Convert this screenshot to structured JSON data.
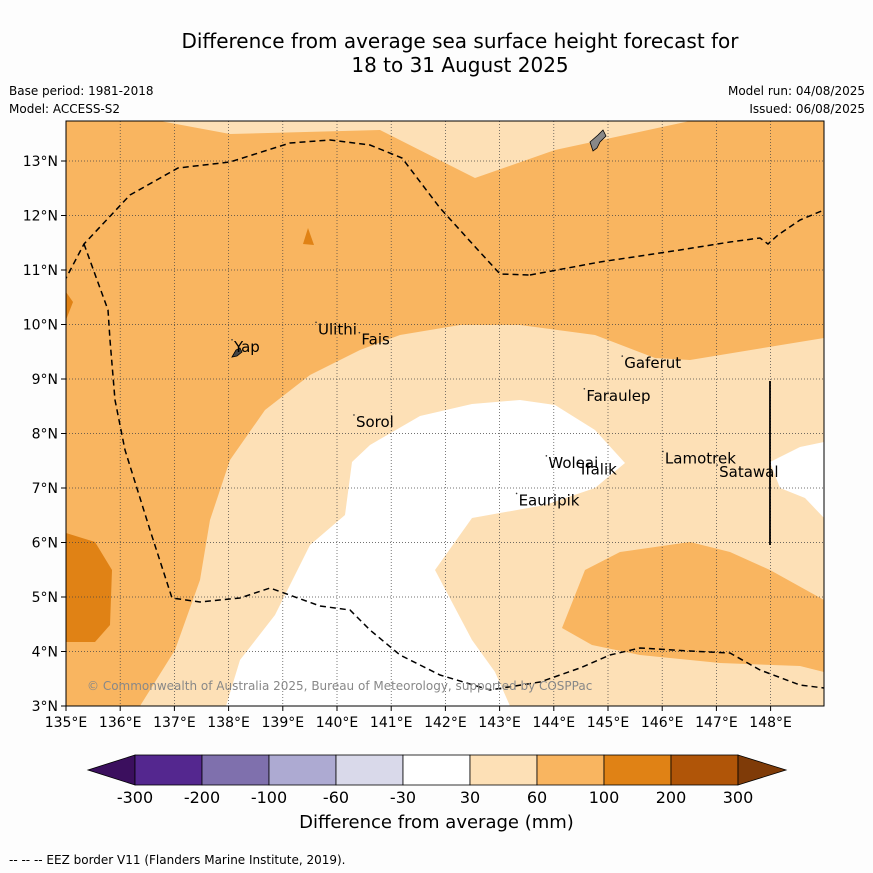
{
  "title_line1": "Difference from average sea surface height forecast for",
  "title_line2": "18 to 31 August 2025",
  "base_period": "Base period: 1981-2018",
  "model": "Model: ACCESS-S2",
  "model_run": "Model run: 04/08/2025",
  "issued": "Issued: 06/08/2025",
  "copyright": "© Commonwealth of Australia 2025, Bureau of Meteorology, supported by COSPPac",
  "x_ticks": [
    "135°E",
    "136°E",
    "137°E",
    "138°E",
    "139°E",
    "140°E",
    "141°E",
    "142°E",
    "143°E",
    "144°E",
    "145°E",
    "146°E",
    "147°E",
    "148°E"
  ],
  "y_ticks": [
    "3°N",
    "4°N",
    "5°N",
    "6°N",
    "7°N",
    "8°N",
    "9°N",
    "10°N",
    "11°N",
    "12°N",
    "13°N"
  ],
  "places": [
    {
      "name": "Ulithi",
      "lon": 139.65,
      "lat": 9.82
    },
    {
      "name": "Fais",
      "lon": 140.45,
      "lat": 9.63
    },
    {
      "name": "Yap",
      "lon": 138.1,
      "lat": 9.5
    },
    {
      "name": "Gaferut",
      "lon": 145.3,
      "lat": 9.2
    },
    {
      "name": "Faraulep",
      "lon": 144.6,
      "lat": 8.6
    },
    {
      "name": "Sorol",
      "lon": 140.35,
      "lat": 8.12
    },
    {
      "name": "Lamotrek",
      "lon": 146.05,
      "lat": 7.45
    },
    {
      "name": "Woleai",
      "lon": 143.9,
      "lat": 7.37
    },
    {
      "name": "Ifalik",
      "lon": 144.5,
      "lat": 7.25
    },
    {
      "name": "Satawal",
      "lon": 147.05,
      "lat": 7.2
    },
    {
      "name": "Eauripik",
      "lon": 143.35,
      "lat": 6.68
    }
  ],
  "colorbar": {
    "ticks": [
      "-300",
      "-200",
      "-100",
      "-60",
      "-30",
      "30",
      "60",
      "100",
      "200",
      "300"
    ],
    "colors": [
      "#3b0f5e",
      "#54278f",
      "#7f70ad",
      "#adaad2",
      "#d9d9ea",
      "#ffffff",
      "#fde0b6",
      "#f9b560",
      "#e08215",
      "#b05508",
      "#7f3b08"
    ],
    "label": "Difference from average (mm)"
  },
  "footer": "--  --  -- EEZ border V11 (Flanders Marine Institute, 2019)."
}
